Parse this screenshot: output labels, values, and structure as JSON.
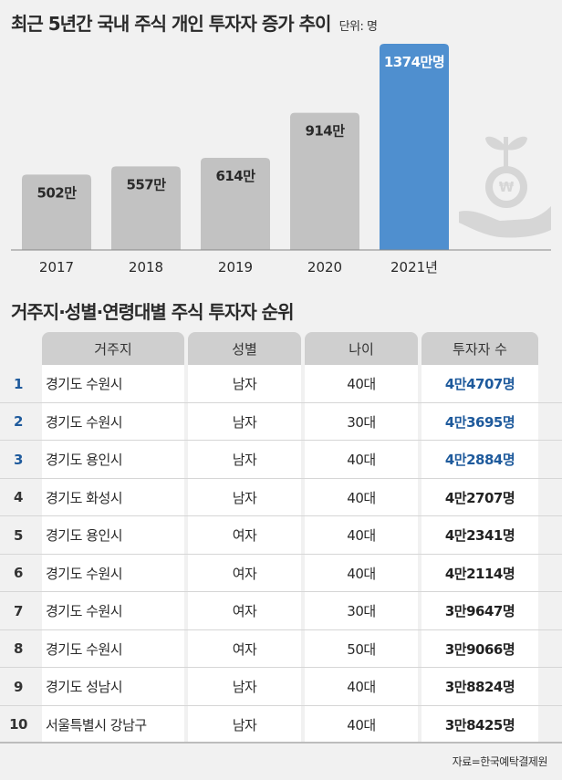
{
  "header": {
    "title": "최근 5년간 국내 주식 개인 투자자 증가 추이",
    "unit": "단위: 명"
  },
  "chart_data": {
    "type": "bar",
    "title": "최근 5년간 국내 주식 개인 투자자 증가 추이",
    "unit": "단위: 명",
    "categories": [
      "2017",
      "2018",
      "2019",
      "2020",
      "2021년"
    ],
    "values": [
      502,
      557,
      614,
      914,
      1374
    ],
    "value_labels": [
      "502만",
      "557만",
      "614만",
      "914만",
      "1374만명"
    ],
    "highlight_index": 4,
    "bar_color": "#c2c2c2",
    "highlight_color": "#4f8fcf",
    "label_color": "#2a2a2a",
    "highlight_label_color": "#ffffff",
    "icon": "money-plant-hand-icon"
  },
  "table": {
    "title": "거주지·성별·연령대별 주식 투자자 순위",
    "headers": [
      "거주지",
      "성별",
      "나이",
      "투자자 수"
    ],
    "highlight_color": "#1e5a9c",
    "rows": [
      {
        "rank": "1",
        "location": "경기도 수원시",
        "gender": "남자",
        "age": "40대",
        "count": "4만4707명",
        "highlight": true
      },
      {
        "rank": "2",
        "location": "경기도 수원시",
        "gender": "남자",
        "age": "30대",
        "count": "4만3695명",
        "highlight": true
      },
      {
        "rank": "3",
        "location": "경기도 용인시",
        "gender": "남자",
        "age": "40대",
        "count": "4만2884명",
        "highlight": true
      },
      {
        "rank": "4",
        "location": "경기도 화성시",
        "gender": "남자",
        "age": "40대",
        "count": "4만2707명",
        "highlight": false
      },
      {
        "rank": "5",
        "location": "경기도 용인시",
        "gender": "여자",
        "age": "40대",
        "count": "4만2341명",
        "highlight": false
      },
      {
        "rank": "6",
        "location": "경기도 수원시",
        "gender": "여자",
        "age": "40대",
        "count": "4만2114명",
        "highlight": false
      },
      {
        "rank": "7",
        "location": "경기도 수원시",
        "gender": "여자",
        "age": "30대",
        "count": "3만9647명",
        "highlight": false
      },
      {
        "rank": "8",
        "location": "경기도 수원시",
        "gender": "여자",
        "age": "50대",
        "count": "3만9066명",
        "highlight": false
      },
      {
        "rank": "9",
        "location": "경기도 성남시",
        "gender": "남자",
        "age": "40대",
        "count": "3만8824명",
        "highlight": false
      },
      {
        "rank": "10",
        "location": "서울특별시 강남구",
        "gender": "남자",
        "age": "40대",
        "count": "3만8425명",
        "highlight": false
      }
    ]
  },
  "source": "자료=한국예탁결제원"
}
